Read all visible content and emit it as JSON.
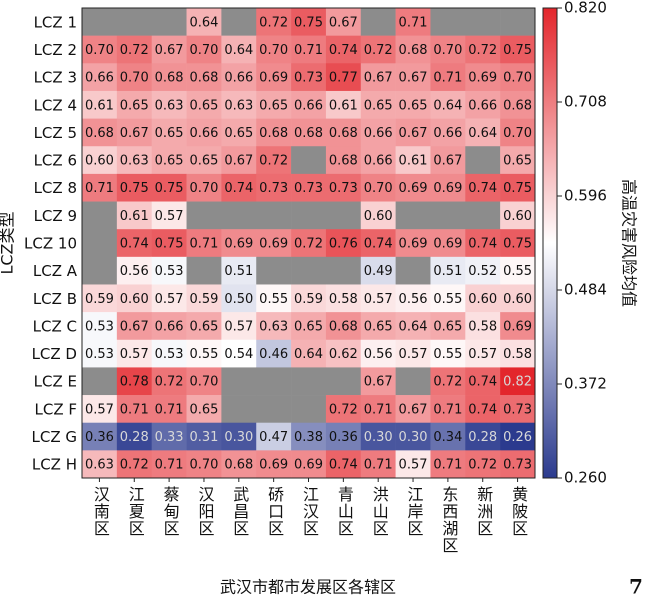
{
  "chart_data": {
    "type": "heatmap",
    "x_label": "武汉市都市发展区各辖区",
    "y_label": "LCZ类型",
    "colorbar_label": "高温灾害风险均值",
    "page_number": "7",
    "categories": [
      "汉南区",
      "江夏区",
      "蔡甸区",
      "汉阳区",
      "武昌区",
      "硚口区",
      "江汉区",
      "青山区",
      "洪山区",
      "江岸区",
      "东西湖区",
      "新洲区",
      "黄陂区"
    ],
    "colors": {
      "low": "#2b3a8e",
      "mid": "#ffffff",
      "high": "#e3262c",
      "missing": "#8c8c8c"
    },
    "clim": [
      0.26,
      0.82
    ],
    "cticks": [
      {
        "value": 0.26,
        "label": "0.260"
      },
      {
        "value": 0.372,
        "label": "0.372"
      },
      {
        "value": 0.484,
        "label": "0.484"
      },
      {
        "value": 0.596,
        "label": "0.596"
      },
      {
        "value": 0.708,
        "label": "0.708"
      },
      {
        "value": 0.82,
        "label": "0.820"
      }
    ],
    "series": [
      {
        "name": "LCZ 1",
        "values": [
          null,
          null,
          null,
          0.64,
          null,
          0.72,
          0.75,
          0.67,
          null,
          0.71,
          null,
          null,
          null
        ],
        "value_labels": [
          null,
          null,
          null,
          "0.64",
          null,
          "0.72",
          "0.75",
          "0.67",
          null,
          "0.71",
          null,
          null,
          null
        ]
      },
      {
        "name": "LCZ 2",
        "values": [
          0.7,
          0.72,
          0.67,
          0.7,
          0.64,
          0.7,
          0.71,
          0.74,
          0.72,
          0.68,
          0.7,
          0.72,
          0.75
        ],
        "value_labels": [
          "0.70",
          "0.72",
          "0.67",
          "0.70",
          "0.64",
          "0.70",
          "0.71",
          "0.74",
          "0.72",
          "0.68",
          "0.70",
          "0.72",
          "0.75"
        ]
      },
      {
        "name": "LCZ 3",
        "values": [
          0.66,
          0.7,
          0.68,
          0.68,
          0.66,
          0.69,
          0.73,
          0.77,
          0.67,
          0.67,
          0.71,
          0.69,
          0.7
        ],
        "value_labels": [
          "0.66",
          "0.70",
          "0.68",
          "0.68",
          "0.66",
          "0.69",
          "0.73",
          "0.77",
          "0.67",
          "0.67",
          "0.71",
          "0.69",
          "0.70"
        ]
      },
      {
        "name": "LCZ 4",
        "values": [
          0.61,
          0.65,
          0.63,
          0.65,
          0.63,
          0.65,
          0.66,
          0.61,
          0.65,
          0.65,
          0.64,
          0.66,
          0.68
        ],
        "value_labels": [
          "0.61",
          "0.65",
          "0.63",
          "0.65",
          "0.63",
          "0.65",
          "0.66",
          "0.61",
          "0.65",
          "0.65",
          "0.64",
          "0.66",
          "0.68"
        ]
      },
      {
        "name": "LCZ 5",
        "values": [
          0.68,
          0.67,
          0.65,
          0.66,
          0.65,
          0.68,
          0.68,
          0.68,
          0.66,
          0.67,
          0.66,
          0.64,
          0.7
        ],
        "value_labels": [
          "0.68",
          "0.67",
          "0.65",
          "0.66",
          "0.65",
          "0.68",
          "0.68",
          "0.68",
          "0.66",
          "0.67",
          "0.66",
          "0.64",
          "0.70"
        ]
      },
      {
        "name": "LCZ 6",
        "values": [
          0.6,
          0.63,
          0.65,
          0.65,
          0.67,
          0.72,
          null,
          0.68,
          0.66,
          0.61,
          0.67,
          null,
          0.65
        ],
        "value_labels": [
          "0.60",
          "0.63",
          "0.65",
          "0.65",
          "0.67",
          "0.72",
          null,
          "0.68",
          "0.66",
          "0.61",
          "0.67",
          null,
          "0.65"
        ]
      },
      {
        "name": "LCZ 8",
        "values": [
          0.71,
          0.75,
          0.75,
          0.7,
          0.74,
          0.73,
          0.73,
          0.73,
          0.7,
          0.69,
          0.69,
          0.74,
          0.75
        ],
        "value_labels": [
          "0.71",
          "0.75",
          "0.75",
          "0.70",
          "0.74",
          "0.73",
          "0.73",
          "0.73",
          "0.70",
          "0.69",
          "0.69",
          "0.74",
          "0.75"
        ]
      },
      {
        "name": "LCZ 9",
        "values": [
          null,
          0.61,
          0.57,
          null,
          null,
          null,
          null,
          null,
          0.6,
          null,
          null,
          null,
          0.6
        ],
        "value_labels": [
          null,
          "0.61",
          "0.57",
          null,
          null,
          null,
          null,
          null,
          "0.60",
          null,
          null,
          null,
          "0.60"
        ]
      },
      {
        "name": "LCZ 10",
        "values": [
          null,
          0.74,
          0.75,
          0.71,
          0.69,
          0.69,
          0.72,
          0.76,
          0.74,
          0.69,
          0.69,
          0.74,
          0.75
        ],
        "value_labels": [
          null,
          "0.74",
          "0.75",
          "0.71",
          "0.69",
          "0.69",
          "0.72",
          "0.76",
          "0.74",
          "0.69",
          "0.69",
          "0.74",
          "0.75"
        ]
      },
      {
        "name": "LCZ A",
        "values": [
          null,
          0.56,
          0.53,
          null,
          0.51,
          null,
          null,
          null,
          0.49,
          null,
          0.51,
          0.52,
          0.55
        ],
        "value_labels": [
          null,
          "0.56",
          "0.53",
          null,
          "0.51",
          null,
          null,
          null,
          "0.49",
          null,
          "0.51",
          "0.52",
          "0.55"
        ]
      },
      {
        "name": "LCZ B",
        "values": [
          0.59,
          0.6,
          0.57,
          0.59,
          0.5,
          0.55,
          0.59,
          0.58,
          0.57,
          0.56,
          0.55,
          0.6,
          0.6
        ],
        "value_labels": [
          "0.59",
          "0.60",
          "0.57",
          "0.59",
          "0.50",
          "0.55",
          "0.59",
          "0.58",
          "0.57",
          "0.56",
          "0.55",
          "0.60",
          "0.60"
        ]
      },
      {
        "name": "LCZ C",
        "values": [
          0.53,
          0.67,
          0.66,
          0.65,
          0.57,
          0.63,
          0.65,
          0.68,
          0.65,
          0.64,
          0.65,
          0.58,
          0.69
        ],
        "value_labels": [
          "0.53",
          "0.67",
          "0.66",
          "0.65",
          "0.57",
          "0.63",
          "0.65",
          "0.68",
          "0.65",
          "0.64",
          "0.65",
          "0.58",
          "0.69"
        ]
      },
      {
        "name": "LCZ D",
        "values": [
          0.53,
          0.57,
          0.53,
          0.55,
          0.54,
          0.46,
          0.64,
          0.62,
          0.56,
          0.57,
          0.55,
          0.57,
          0.58
        ],
        "value_labels": [
          "0.53",
          "0.57",
          "0.53",
          "0.55",
          "0.54",
          "0.46",
          "0.64",
          "0.62",
          "0.56",
          "0.57",
          "0.55",
          "0.57",
          "0.58"
        ]
      },
      {
        "name": "LCZ E",
        "values": [
          null,
          0.78,
          0.72,
          0.7,
          null,
          null,
          null,
          null,
          0.67,
          null,
          0.72,
          0.74,
          0.82
        ],
        "value_labels": [
          null,
          "0.78",
          "0.72",
          "0.70",
          null,
          null,
          null,
          null,
          "0.67",
          null,
          "0.72",
          "0.74",
          "0.82"
        ]
      },
      {
        "name": "LCZ F",
        "values": [
          0.57,
          0.71,
          0.71,
          0.65,
          null,
          null,
          null,
          0.72,
          0.71,
          0.67,
          0.71,
          0.74,
          0.73
        ],
        "value_labels": [
          "0.57",
          "0.71",
          "0.71",
          "0.65",
          null,
          null,
          null,
          "0.72",
          "0.71",
          "0.67",
          "0.71",
          "0.74",
          "0.73"
        ]
      },
      {
        "name": "LCZ G",
        "values": [
          0.36,
          0.28,
          0.33,
          0.31,
          0.3,
          0.47,
          0.38,
          0.36,
          0.3,
          0.3,
          0.34,
          0.28,
          0.26
        ],
        "value_labels": [
          "0.36",
          "0.28",
          "0.33",
          "0.31",
          "0.30",
          "0.47",
          "0.38",
          "0.36",
          "0.30",
          "0.30",
          "0.34",
          "0.28",
          "0.26"
        ]
      },
      {
        "name": "LCZ H",
        "values": [
          0.63,
          0.72,
          0.71,
          0.7,
          0.68,
          0.69,
          0.69,
          0.74,
          0.71,
          0.57,
          0.71,
          0.72,
          0.73
        ],
        "value_labels": [
          "0.63",
          "0.72",
          "0.71",
          "0.70",
          "0.68",
          "0.69",
          "0.69",
          "0.74",
          "0.71",
          "0.57",
          "0.71",
          "0.72",
          "0.73"
        ]
      }
    ]
  }
}
